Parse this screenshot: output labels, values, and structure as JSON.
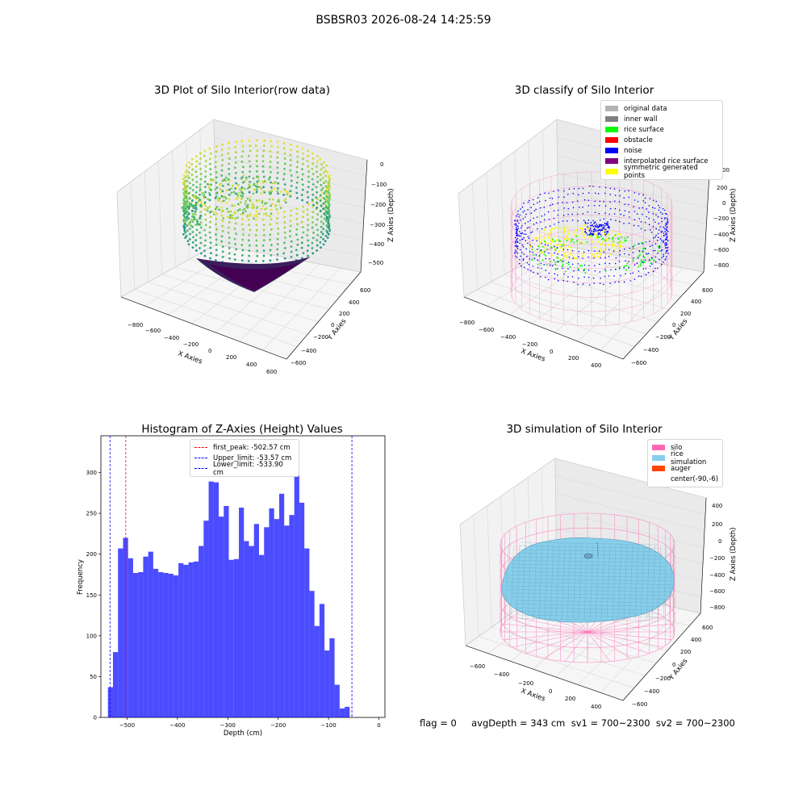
{
  "suptitle": "BSBSR03 2026-08-24 14:25:59",
  "panels": {
    "raw": {
      "title": "3D Plot of Silo Interior(row data)",
      "xlabel": "X Axies",
      "ylabel": "Y Axies",
      "zlabel": "Z Axies (Depth)",
      "xticks": [
        "−800",
        "−600",
        "−400",
        "−200",
        "0",
        "200",
        "400",
        "600"
      ],
      "yticks": [
        "−600",
        "−400",
        "−200",
        "0",
        "200",
        "400",
        "600"
      ],
      "zticks": [
        "0",
        "−100",
        "−200",
        "−300",
        "−400",
        "−500"
      ]
    },
    "classify": {
      "title": "3D classify of Silo Interior",
      "xlabel": "X Axies",
      "ylabel": "Y Axies",
      "zlabel": "Z Axies (Depth)",
      "xticks": [
        "−800",
        "−600",
        "−400",
        "−200",
        "0",
        "200",
        "400"
      ],
      "yticks": [
        "−600",
        "−400",
        "−200",
        "0",
        "200",
        "400",
        "600"
      ],
      "zticks": [
        "200",
        "0",
        "−200",
        "−400",
        "−600",
        "−800"
      ],
      "legend": [
        {
          "label": "original data",
          "color": "#b3b3b3"
        },
        {
          "label": "inner wall",
          "color": "#808080"
        },
        {
          "label": "rice surface",
          "color": "#00ff00"
        },
        {
          "label": "obstacle",
          "color": "#ff0000"
        },
        {
          "label": "noise",
          "color": "#0000ff"
        },
        {
          "label": "interpolated rice surface",
          "color": "#800080"
        },
        {
          "label": "symmetric generated points",
          "color": "#ffff00"
        }
      ],
      "partial_tick": "00"
    },
    "hist": {
      "title": "Histogram of Z-Axies (Height) Values",
      "xlabel": "Depth (cm)",
      "ylabel": "Frequency",
      "legend": [
        {
          "label": "first_peak: -502.57 cm",
          "color": "#ff0000"
        },
        {
          "label": "Upper_limit: -53.57 cm",
          "color": "#0000ff"
        },
        {
          "label": "Lower_limit: -533.90 cm",
          "color": "#0000ff"
        }
      ]
    },
    "sim": {
      "title": "3D simulation of Silo Interior",
      "xlabel": "X Axies",
      "ylabel": "Y Axies",
      "zlabel": "Z Axies (Depth)",
      "xticks": [
        "−600",
        "−400",
        "−200",
        "0",
        "200",
        "400"
      ],
      "yticks": [
        "−600",
        "−400",
        "−200",
        "0",
        "200",
        "400",
        "600"
      ],
      "zticks": [
        "400",
        "200",
        "0",
        "−200",
        "−400",
        "−600",
        "−800"
      ],
      "legend": [
        {
          "label": "silo",
          "color": "#ff69b4"
        },
        {
          "label": "rice simulation",
          "color": "#87ceeb"
        },
        {
          "label": "auger",
          "color": "#ff4500"
        },
        {
          "label": "center(-90,-6)",
          "color": "#ffffff"
        }
      ]
    }
  },
  "footer": "flag = 0     avgDepth = 343 cm  sv1 = 700~2300  sv2 = 700~2300",
  "colors": {
    "bar": "#0000ff",
    "bar_alpha": 0.7,
    "silo": "#ff69b4",
    "rice_sim": "#87ceeb",
    "noise": "#0000ff",
    "rice_surface": "#00ff00",
    "symmetric": "#ffff00"
  },
  "chart_data": [
    {
      "type": "scatter",
      "title": "3D Plot of Silo Interior(row data)",
      "xlabel": "X Axies",
      "ylabel": "Y Axies",
      "zlabel": "Z Axies (Depth)",
      "xlim": [
        -900,
        650
      ],
      "ylim": [
        -700,
        700
      ],
      "zlim": [
        -560,
        20
      ],
      "colormap": "viridis"
    },
    {
      "type": "scatter",
      "title": "3D classify of Silo Interior",
      "xlabel": "X Axies",
      "ylabel": "Y Axies",
      "zlabel": "Z Axies (Depth)",
      "xlim": [
        -900,
        500
      ],
      "ylim": [
        -700,
        700
      ],
      "zlim": [
        -900,
        350
      ],
      "series": [
        {
          "name": "original data"
        },
        {
          "name": "inner wall"
        },
        {
          "name": "rice surface"
        },
        {
          "name": "obstacle"
        },
        {
          "name": "noise"
        },
        {
          "name": "interpolated rice surface"
        },
        {
          "name": "symmetric generated points"
        }
      ]
    },
    {
      "type": "bar",
      "title": "Histogram of Z-Axies (Height) Values",
      "xlabel": "Depth (cm)",
      "ylabel": "Frequency",
      "xlim": [
        -552,
        12
      ],
      "ylim": [
        0,
        345
      ],
      "xticks": [
        -500,
        -400,
        -300,
        -200,
        -100,
        0
      ],
      "yticks": [
        0,
        50,
        100,
        150,
        200,
        250,
        300
      ],
      "bin_start": -538,
      "bin_width": 10,
      "values": [
        37,
        80,
        207,
        220,
        195,
        177,
        178,
        197,
        203,
        182,
        178,
        177,
        176,
        174,
        189,
        187,
        190,
        191,
        210,
        241,
        289,
        288,
        246,
        259,
        193,
        194,
        257,
        216,
        210,
        237,
        199,
        233,
        256,
        243,
        274,
        235,
        248,
        328,
        263,
        207,
        155,
        112,
        139,
        82,
        97,
        40,
        11,
        13
      ],
      "vlines": [
        {
          "name": "first_peak",
          "x": -502.57,
          "color": "#ff0000"
        },
        {
          "name": "Upper_limit",
          "x": -53.57,
          "color": "#0000ff"
        },
        {
          "name": "Lower_limit",
          "x": -533.9,
          "color": "#0000ff"
        }
      ]
    },
    {
      "type": "area",
      "title": "3D simulation of Silo Interior",
      "xlabel": "X Axies",
      "ylabel": "Y Axies",
      "zlabel": "Z Axies (Depth)",
      "xlim": [
        -750,
        550
      ],
      "ylim": [
        -700,
        700
      ],
      "zlim": [
        -900,
        450
      ],
      "series": [
        {
          "name": "silo"
        },
        {
          "name": "rice simulation"
        },
        {
          "name": "auger"
        },
        {
          "name": "center(-90,-6)"
        }
      ]
    }
  ]
}
